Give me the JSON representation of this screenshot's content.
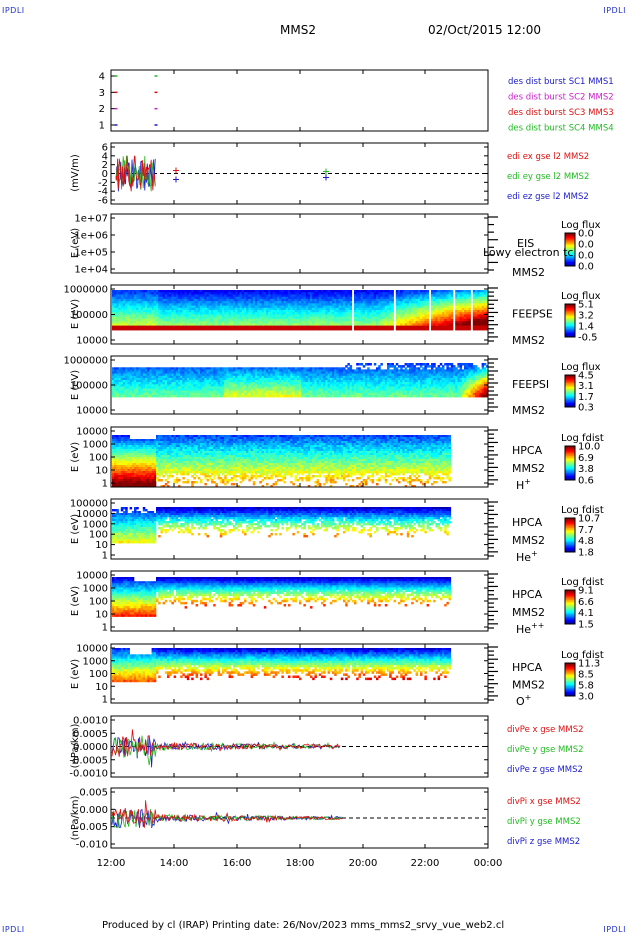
{
  "corners": {
    "tl": "IPDLI",
    "tr": "IPDLI",
    "bl": "IPDLI",
    "br": "IPDLI"
  },
  "header": {
    "mission": "MMS2",
    "datetime": "02/Oct/2015 12:00"
  },
  "footer": {
    "text": "Produced by cl (IRAP)   Printing date: 26/Nov/2023   mms_mms2_srvy_vue_web2.cl"
  },
  "xaxis": {
    "ticks": [
      "12:00",
      "14:00",
      "16:00",
      "18:00",
      "20:00",
      "22:00",
      "00:00"
    ]
  },
  "colors": {
    "blue": "#1a1acc",
    "red": "#dd1111",
    "green": "#22bb22",
    "magenta": "#cc22cc"
  },
  "chart_data": [
    {
      "type": "scatter",
      "id": "burst",
      "yticks": [
        "4",
        "3",
        "2",
        "1"
      ],
      "legend": [
        {
          "label": "des dist burst SC1 MMS1",
          "color": "#1a1acc"
        },
        {
          "label": "des dist burst SC2 MMS2",
          "color": "#cc22cc"
        },
        {
          "label": "des dist burst SC3 MMS3",
          "color": "#dd1111"
        },
        {
          "label": "des dist burst SC4 MMS4",
          "color": "#22bb22"
        }
      ]
    },
    {
      "type": "line",
      "id": "edi",
      "ylabel": "(mV/m)",
      "yticks": [
        "6",
        "4",
        "2",
        "0",
        "-2",
        "-4",
        "-6"
      ],
      "legend": [
        {
          "label": "edi ex gse l2 MMS2",
          "color": "#dd1111"
        },
        {
          "label": "edi ey gse l2 MMS2",
          "color": "#22bb22"
        },
        {
          "label": "edi ez gse l2 MMS2",
          "color": "#1a1acc"
        }
      ]
    },
    {
      "type": "heatmap",
      "id": "eis",
      "ylabel": "E (eV)",
      "yticks": [
        "1e+07",
        "1e+06",
        "1e+05",
        "1e+04"
      ],
      "cb_title": "Log flux",
      "cb_ticks": [
        "0.0",
        "0.0",
        "0.0",
        "0.0"
      ],
      "labels": [
        "EIS",
        "MMS2"
      ],
      "overlay": "Lowy electron tc"
    },
    {
      "type": "heatmap",
      "id": "feepse",
      "ylabel": "E (eV)",
      "yticks": [
        "1000000",
        "100000",
        "10000"
      ],
      "cb_title": "Log flux",
      "cb_ticks": [
        "5.1",
        "3.2",
        "1.4",
        "-0.5"
      ],
      "labels": [
        "FEEPSE",
        "MMS2"
      ]
    },
    {
      "type": "heatmap",
      "id": "feepsi",
      "ylabel": "E (eV)",
      "yticks": [
        "1000000",
        "100000",
        "10000"
      ],
      "cb_title": "Log flux",
      "cb_ticks": [
        "4.5",
        "3.1",
        "1.7",
        "0.3"
      ],
      "labels": [
        "FEEPSI",
        "MMS2"
      ]
    },
    {
      "type": "heatmap",
      "id": "hpca_h",
      "ylabel": "E (eV)",
      "yticks": [
        "10000",
        "1000",
        "100",
        "10",
        "1"
      ],
      "cb_title": "Log fdist",
      "cb_ticks": [
        "10.0",
        "6.9",
        "3.8",
        "0.6"
      ],
      "labels": [
        "HPCA",
        "MMS2",
        "H+"
      ]
    },
    {
      "type": "heatmap",
      "id": "hpca_he",
      "ylabel": "E (eV)",
      "yticks": [
        "100000",
        "10000",
        "1000",
        "100",
        "10",
        "1"
      ],
      "cb_title": "Log fdist",
      "cb_ticks": [
        "10.7",
        "7.7",
        "4.8",
        "1.8"
      ],
      "labels": [
        "HPCA",
        "MMS2",
        "He+"
      ]
    },
    {
      "type": "heatmap",
      "id": "hpca_hepp",
      "ylabel": "E (eV)",
      "yticks": [
        "10000",
        "1000",
        "100",
        "10",
        "1"
      ],
      "cb_title": "Log fdist",
      "cb_ticks": [
        "9.1",
        "6.6",
        "4.1",
        "1.5"
      ],
      "labels": [
        "HPCA",
        "MMS2",
        "He++"
      ]
    },
    {
      "type": "heatmap",
      "id": "hpca_o",
      "ylabel": "E (eV)",
      "yticks": [
        "10000",
        "1000",
        "100",
        "10",
        "1"
      ],
      "cb_title": "Log fdist",
      "cb_ticks": [
        "11.3",
        "8.5",
        "5.8",
        "3.0"
      ],
      "labels": [
        "HPCA",
        "MMS2",
        "O+"
      ]
    },
    {
      "type": "line",
      "id": "divpe",
      "ylabel": "(nPa/km)",
      "yticks": [
        "0.0010",
        "0.0005",
        "0.0000",
        "-0.0005",
        "-0.0010"
      ],
      "legend": [
        {
          "label": "divPe x gse MMS2",
          "color": "#dd1111"
        },
        {
          "label": "divPe y gse MMS2",
          "color": "#22bb22"
        },
        {
          "label": "divPe z gse MMS2",
          "color": "#1a1acc"
        }
      ]
    },
    {
      "type": "line",
      "id": "divpi",
      "ylabel": "(nPa/km)",
      "yticks": [
        "0.005",
        "0.000",
        "-0.005",
        "-0.010"
      ],
      "legend": [
        {
          "label": "divPi x gse MMS2",
          "color": "#dd1111"
        },
        {
          "label": "divPi y gse MMS2",
          "color": "#22bb22"
        },
        {
          "label": "divPi z gse MMS2",
          "color": "#1a1acc"
        }
      ]
    }
  ]
}
